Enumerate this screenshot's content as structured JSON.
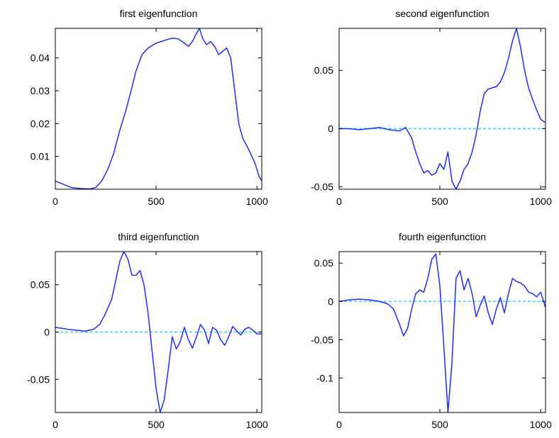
{
  "colors": {
    "background": "#ffffff",
    "curve": "#1f2bff",
    "zero_line": "#36d6e6",
    "axes": "#000000"
  },
  "chart_data": [
    {
      "type": "line",
      "title": "first eigenfunction",
      "xlim": [
        0,
        1024
      ],
      "ylim": [
        0,
        0.049
      ],
      "xticks": [
        {
          "v": 0,
          "label": "0"
        },
        {
          "v": 500,
          "label": "500"
        },
        {
          "v": 1000,
          "label": "1000"
        }
      ],
      "yticks": [
        {
          "v": 0.01,
          "label": "0.01"
        },
        {
          "v": 0.02,
          "label": "0.02"
        },
        {
          "v": 0.03,
          "label": "0.03"
        },
        {
          "v": 0.04,
          "label": "0.04"
        }
      ],
      "zero_line": false,
      "series": [
        {
          "x": [
            0,
            40,
            80,
            110,
            140,
            170,
            200,
            230,
            260,
            290,
            320,
            350,
            380,
            400,
            430,
            460,
            500,
            550,
            580,
            610,
            640,
            660,
            680,
            700,
            715,
            730,
            750,
            770,
            790,
            810,
            830,
            850,
            870,
            890,
            910,
            930,
            960,
            990,
            1010,
            1024
          ],
          "y": [
            0.0025,
            0.0015,
            0.0005,
            0.0003,
            0.0002,
            0.0001,
            0.0005,
            0.0025,
            0.006,
            0.011,
            0.018,
            0.024,
            0.031,
            0.036,
            0.041,
            0.043,
            0.0445,
            0.0455,
            0.046,
            0.0458,
            0.0445,
            0.0435,
            0.045,
            0.0475,
            0.049,
            0.046,
            0.044,
            0.045,
            0.0435,
            0.041,
            0.042,
            0.043,
            0.04,
            0.03,
            0.02,
            0.0155,
            0.012,
            0.008,
            0.004,
            0.0025
          ]
        }
      ]
    },
    {
      "type": "line",
      "title": "second eigenfunction",
      "xlim": [
        0,
        1024
      ],
      "ylim": [
        -0.052,
        0.086
      ],
      "xticks": [
        {
          "v": 0,
          "label": "0"
        },
        {
          "v": 500,
          "label": "500"
        },
        {
          "v": 1000,
          "label": "1000"
        }
      ],
      "yticks": [
        {
          "v": -0.05,
          "label": "-0.05"
        },
        {
          "v": 0,
          "label": "0"
        },
        {
          "v": 0.05,
          "label": "0.05"
        }
      ],
      "zero_line": true,
      "series": [
        {
          "x": [
            0,
            50,
            100,
            150,
            200,
            250,
            300,
            330,
            360,
            380,
            400,
            420,
            440,
            460,
            480,
            500,
            520,
            540,
            560,
            580,
            600,
            620,
            640,
            660,
            680,
            700,
            720,
            740,
            760,
            780,
            800,
            820,
            840,
            860,
            880,
            900,
            920,
            940,
            960,
            980,
            1000,
            1024
          ],
          "y": [
            0,
            0,
            -0.001,
            0,
            0.001,
            -0.001,
            -0.002,
            0.001,
            -0.008,
            -0.02,
            -0.03,
            -0.038,
            -0.036,
            -0.04,
            -0.038,
            -0.03,
            -0.035,
            -0.02,
            -0.045,
            -0.052,
            -0.045,
            -0.035,
            -0.03,
            -0.02,
            -0.005,
            0.015,
            0.03,
            0.034,
            0.035,
            0.036,
            0.04,
            0.048,
            0.06,
            0.075,
            0.086,
            0.07,
            0.05,
            0.035,
            0.025,
            0.016,
            0.008,
            0.005
          ]
        }
      ]
    },
    {
      "type": "line",
      "title": "third eigenfunction",
      "xlim": [
        0,
        1024
      ],
      "ylim": [
        -0.085,
        0.085
      ],
      "xticks": [
        {
          "v": 0,
          "label": "0"
        },
        {
          "v": 500,
          "label": "500"
        },
        {
          "v": 1000,
          "label": "1000"
        }
      ],
      "yticks": [
        {
          "v": -0.05,
          "label": "-0.05"
        },
        {
          "v": 0,
          "label": "0"
        },
        {
          "v": 0.05,
          "label": "0.05"
        }
      ],
      "zero_line": true,
      "series": [
        {
          "x": [
            0,
            30,
            60,
            100,
            150,
            190,
            220,
            250,
            280,
            300,
            320,
            340,
            360,
            380,
            400,
            420,
            440,
            460,
            480,
            500,
            520,
            540,
            560,
            580,
            600,
            620,
            640,
            660,
            680,
            700,
            720,
            740,
            760,
            780,
            800,
            820,
            840,
            860,
            880,
            900,
            920,
            940,
            960,
            980,
            1000,
            1024
          ],
          "y": [
            0.005,
            0.004,
            0.003,
            0.002,
            0.001,
            0.003,
            0.008,
            0.02,
            0.035,
            0.055,
            0.075,
            0.085,
            0.077,
            0.06,
            0.06,
            0.065,
            0.05,
            0.02,
            -0.02,
            -0.06,
            -0.085,
            -0.072,
            -0.04,
            -0.005,
            -0.018,
            -0.01,
            0.005,
            -0.008,
            -0.017,
            -0.005,
            0.008,
            0.002,
            -0.012,
            0.005,
            0.002,
            -0.008,
            -0.014,
            -0.005,
            0.006,
            0.001,
            -0.003,
            0.003,
            0.005,
            0.002,
            -0.002,
            -0.002
          ]
        }
      ]
    },
    {
      "type": "line",
      "title": "fourth eigenfunction",
      "xlim": [
        0,
        1024
      ],
      "ylim": [
        -0.145,
        0.065
      ],
      "xticks": [
        {
          "v": 0,
          "label": "0"
        },
        {
          "v": 500,
          "label": "500"
        },
        {
          "v": 1000,
          "label": "1000"
        }
      ],
      "yticks": [
        {
          "v": -0.1,
          "label": "-0.1"
        },
        {
          "v": -0.05,
          "label": "-0.05"
        },
        {
          "v": 0,
          "label": "0"
        },
        {
          "v": 0.05,
          "label": "0.05"
        }
      ],
      "zero_line": true,
      "series": [
        {
          "x": [
            0,
            50,
            100,
            150,
            200,
            240,
            270,
            300,
            320,
            340,
            360,
            380,
            400,
            420,
            440,
            460,
            480,
            500,
            520,
            540,
            560,
            580,
            600,
            620,
            640,
            660,
            680,
            700,
            720,
            740,
            760,
            780,
            800,
            820,
            840,
            860,
            880,
            900,
            920,
            940,
            960,
            980,
            1000,
            1024
          ],
          "y": [
            0,
            0.002,
            0.003,
            0.002,
            0,
            -0.003,
            -0.01,
            -0.03,
            -0.045,
            -0.035,
            -0.01,
            0.01,
            0.015,
            0.012,
            0.03,
            0.055,
            0.062,
            0.02,
            -0.06,
            -0.145,
            -0.08,
            0.03,
            0.04,
            0.015,
            0.03,
            0.01,
            -0.02,
            -0.005,
            0.007,
            -0.015,
            -0.03,
            -0.01,
            0.005,
            -0.015,
            0.01,
            0.03,
            0.026,
            0.024,
            0.02,
            0.012,
            0.01,
            0.006,
            0.012,
            -0.008
          ]
        }
      ]
    }
  ]
}
